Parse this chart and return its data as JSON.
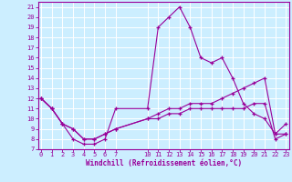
{
  "xlabel": "Windchill (Refroidissement éolien,°C)",
  "bg_color": "#cceeff",
  "line_color": "#990099",
  "grid_color": "#ffffff",
  "x_ticks": [
    0,
    1,
    2,
    3,
    4,
    5,
    6,
    7,
    10,
    11,
    12,
    13,
    14,
    15,
    16,
    17,
    18,
    19,
    20,
    21,
    22,
    23
  ],
  "ylim": [
    7,
    21.5
  ],
  "xlim": [
    -0.3,
    23.3
  ],
  "y_ticks": [
    7,
    8,
    9,
    10,
    11,
    12,
    13,
    14,
    15,
    16,
    17,
    18,
    19,
    20,
    21
  ],
  "series1_x": [
    0,
    1,
    2,
    3,
    4,
    5,
    6,
    7,
    10,
    11,
    12,
    13,
    14,
    15,
    16,
    17,
    18,
    19,
    20,
    21,
    22,
    23
  ],
  "series1_y": [
    12,
    11,
    9.5,
    8,
    7.5,
    7.5,
    8,
    11,
    11,
    19,
    20,
    21,
    19,
    16,
    15.5,
    16,
    14,
    11.5,
    10.5,
    10,
    8.5,
    9.5
  ],
  "series2_x": [
    0,
    1,
    2,
    3,
    4,
    5,
    6,
    7,
    10,
    11,
    12,
    13,
    14,
    15,
    16,
    17,
    18,
    19,
    20,
    21,
    22,
    23
  ],
  "series2_y": [
    12,
    11,
    9.5,
    9,
    8,
    8,
    8.5,
    9,
    10,
    10.5,
    11,
    11,
    11.5,
    11.5,
    11.5,
    12,
    12.5,
    13,
    13.5,
    14,
    8.5,
    8.5
  ],
  "series3_x": [
    0,
    1,
    2,
    3,
    4,
    5,
    6,
    7,
    10,
    11,
    12,
    13,
    14,
    15,
    16,
    17,
    18,
    19,
    20,
    21,
    22,
    23
  ],
  "series3_y": [
    12,
    11,
    9.5,
    9,
    8,
    8,
    8.5,
    9,
    10,
    10,
    10.5,
    10.5,
    11,
    11,
    11,
    11,
    11,
    11,
    11.5,
    11.5,
    8,
    8.5
  ]
}
